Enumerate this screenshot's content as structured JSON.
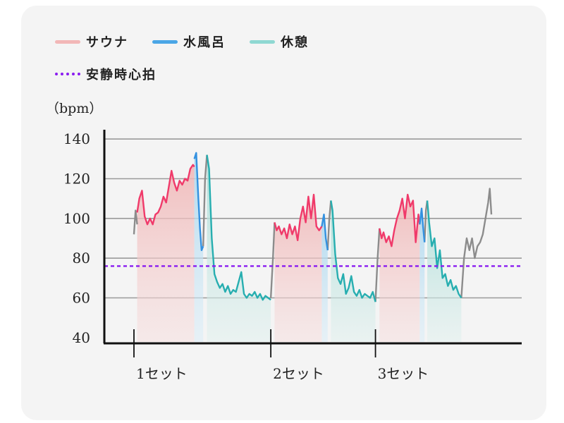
{
  "chart_data": {
    "type": "line",
    "ylabel": "（bpm）",
    "ylim": [
      30,
      150
    ],
    "yticks": [
      40,
      60,
      80,
      100,
      120,
      140
    ],
    "grid": true,
    "legend_position": "top-left",
    "categories": [
      "1セット",
      "2セット",
      "3セット"
    ],
    "series": [
      {
        "name": "サウナ",
        "color": "#f2b7b7",
        "line_color": "#f03a6a"
      },
      {
        "name": "水風呂",
        "color": "#4aa6e6",
        "line_color": "#3391e0"
      },
      {
        "name": "休憩",
        "color": "#8fd8d2",
        "line_color": "#27aeb0"
      }
    ],
    "reference_line": {
      "name": "安静時心拍",
      "value": 76,
      "color": "#8a1cf0"
    },
    "x_range": [
      0,
      100
    ],
    "heart_rate": {
      "gray_before_set1": [
        [
          0,
          92
        ],
        [
          0.6,
          104
        ],
        [
          1.2,
          97
        ]
      ],
      "sauna_set1": [
        [
          1.2,
          103
        ],
        [
          2,
          110
        ],
        [
          3,
          114
        ],
        [
          4,
          101
        ],
        [
          5,
          97
        ],
        [
          6,
          100
        ],
        [
          7,
          97
        ],
        [
          8,
          102
        ],
        [
          9,
          103
        ],
        [
          10,
          106
        ],
        [
          11,
          111
        ],
        [
          12,
          108
        ],
        [
          13,
          116
        ],
        [
          14,
          124
        ],
        [
          15,
          118
        ],
        [
          16,
          114
        ],
        [
          17,
          119
        ],
        [
          18,
          117
        ],
        [
          19,
          120
        ],
        [
          20,
          119
        ],
        [
          21,
          125
        ],
        [
          22,
          127
        ],
        [
          22.5,
          126
        ]
      ],
      "cold_set1": [
        [
          22.5,
          130
        ],
        [
          23.2,
          133
        ],
        [
          24,
          110
        ],
        [
          24.6,
          95
        ],
        [
          25.2,
          84
        ],
        [
          25.8,
          86
        ]
      ],
      "gap_set1": [
        [
          25.8,
          86
        ],
        [
          26.5,
          120
        ],
        [
          27.2,
          132
        ]
      ],
      "rest_set1": [
        [
          27.2,
          132
        ],
        [
          28,
          125
        ],
        [
          29,
          90
        ],
        [
          30,
          72
        ],
        [
          31,
          68
        ],
        [
          32,
          65
        ],
        [
          33,
          67
        ],
        [
          34,
          63
        ],
        [
          35,
          66
        ],
        [
          36,
          62
        ],
        [
          37,
          64
        ],
        [
          38,
          63
        ],
        [
          39,
          68
        ],
        [
          40,
          73
        ],
        [
          41,
          62
        ],
        [
          42,
          60
        ],
        [
          43,
          62
        ],
        [
          44,
          61
        ],
        [
          45,
          63
        ],
        [
          46,
          60
        ],
        [
          47,
          62
        ],
        [
          48,
          59
        ],
        [
          49,
          61
        ],
        [
          50,
          60
        ],
        [
          51,
          59
        ]
      ],
      "gray_before_set2": [
        [
          51,
          60
        ],
        [
          51.8,
          80
        ],
        [
          52.4,
          98
        ]
      ],
      "sauna_set2": [
        [
          52.4,
          98
        ],
        [
          53.2,
          94
        ],
        [
          54,
          96
        ],
        [
          55,
          92
        ],
        [
          56,
          95
        ],
        [
          57,
          90
        ],
        [
          58,
          97
        ],
        [
          59,
          92
        ],
        [
          60,
          96
        ],
        [
          61,
          89
        ],
        [
          62,
          100
        ],
        [
          63,
          106
        ],
        [
          64,
          98
        ],
        [
          65,
          111
        ],
        [
          66,
          100
        ],
        [
          67,
          112
        ],
        [
          68,
          96
        ],
        [
          69,
          94
        ],
        [
          70,
          96
        ]
      ],
      "cold_set2": [
        [
          70,
          96
        ],
        [
          70.8,
          102
        ],
        [
          71.5,
          90
        ],
        [
          72.2,
          84
        ]
      ],
      "gap_set2": [
        [
          72.2,
          84
        ],
        [
          72.8,
          100
        ],
        [
          73.4,
          109
        ]
      ],
      "rest_set2": [
        [
          73.4,
          109
        ],
        [
          74,
          104
        ],
        [
          75,
          82
        ],
        [
          76,
          70
        ],
        [
          77,
          67
        ],
        [
          78,
          72
        ],
        [
          79,
          62
        ],
        [
          80,
          65
        ],
        [
          81,
          71
        ],
        [
          82,
          63
        ],
        [
          83,
          61
        ],
        [
          84,
          64
        ],
        [
          85,
          60
        ],
        [
          86,
          62
        ],
        [
          87,
          61
        ],
        [
          88,
          60
        ],
        [
          89,
          63
        ],
        [
          90,
          58
        ]
      ],
      "gray_before_set3": [
        [
          90,
          58
        ],
        [
          90.8,
          80
        ],
        [
          91.5,
          95
        ]
      ],
      "sauna_set3": [
        [
          91.5,
          95
        ],
        [
          92.3,
          90
        ],
        [
          93,
          93
        ],
        [
          94,
          88
        ],
        [
          95,
          91
        ],
        [
          96,
          86
        ],
        [
          97,
          94
        ],
        [
          98,
          100
        ],
        [
          99,
          104
        ],
        [
          100,
          110
        ],
        [
          101,
          100
        ],
        [
          102,
          112
        ],
        [
          103,
          106
        ],
        [
          104,
          109
        ],
        [
          105,
          88
        ],
        [
          106,
          102
        ],
        [
          106.5,
          97
        ]
      ],
      "cold_set3": [
        [
          106.5,
          97
        ],
        [
          107.2,
          105
        ],
        [
          107.8,
          95
        ],
        [
          108.3,
          88
        ]
      ],
      "gap_set3": [
        [
          108.3,
          88
        ],
        [
          108.8,
          104
        ],
        [
          109.3,
          109
        ]
      ],
      "rest_set3": [
        [
          109.3,
          109
        ],
        [
          110,
          98
        ],
        [
          111,
          86
        ],
        [
          112,
          90
        ],
        [
          113,
          75
        ],
        [
          114,
          84
        ],
        [
          115,
          70
        ],
        [
          116,
          72
        ],
        [
          117,
          66
        ],
        [
          118,
          69
        ],
        [
          119,
          64
        ],
        [
          120,
          66
        ],
        [
          121,
          62
        ],
        [
          122,
          60
        ]
      ],
      "gray_after_set3": [
        [
          122,
          60
        ],
        [
          123,
          80
        ],
        [
          124,
          90
        ],
        [
          125,
          84
        ],
        [
          126,
          90
        ],
        [
          127,
          80
        ],
        [
          128,
          86
        ],
        [
          129,
          88
        ],
        [
          130,
          92
        ],
        [
          131,
          100
        ],
        [
          132,
          108
        ],
        [
          132.6,
          115
        ],
        [
          133.2,
          102
        ]
      ]
    },
    "set_markers": [
      0,
      51,
      90
    ]
  }
}
